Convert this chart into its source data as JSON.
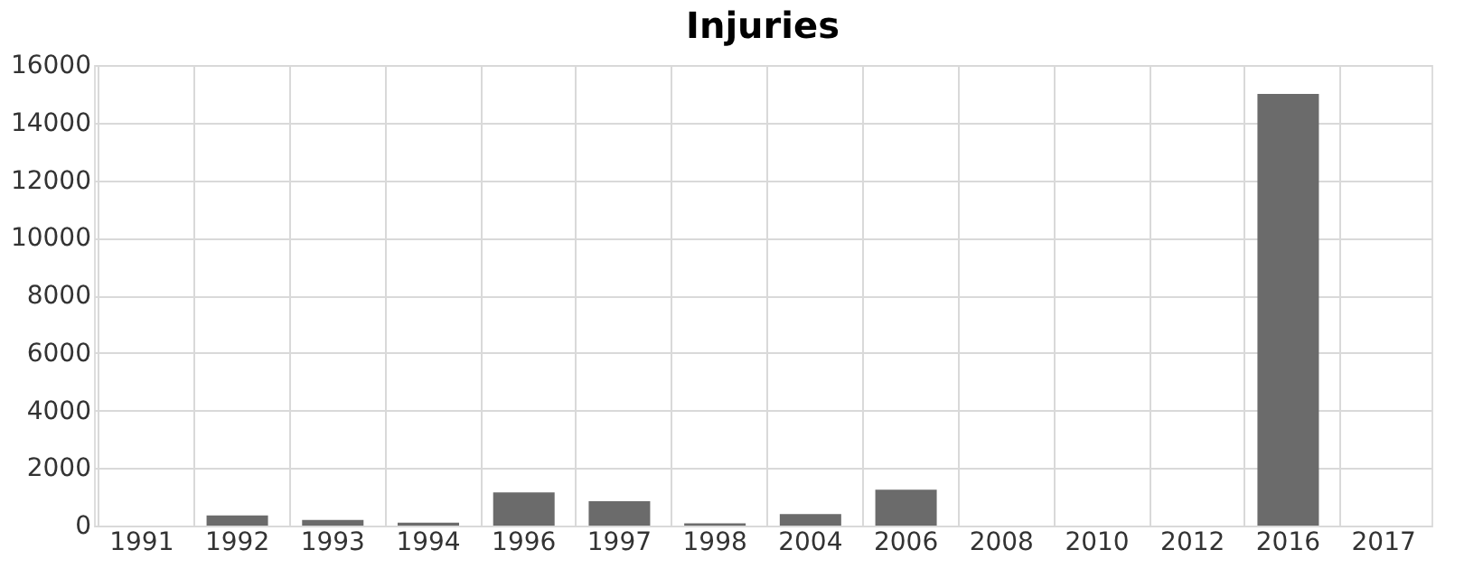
{
  "chart_data": {
    "type": "bar",
    "title": "Injuries",
    "categories": [
      "1991",
      "1992",
      "1993",
      "1994",
      "1996",
      "1997",
      "1998",
      "2004",
      "2006",
      "2008",
      "2010",
      "2012",
      "2016",
      "2017"
    ],
    "values": [
      0,
      350,
      200,
      100,
      1150,
      850,
      80,
      400,
      1250,
      0,
      0,
      0,
      15000,
      0
    ],
    "color": "#6b6b6b",
    "ylim": [
      0,
      16000
    ],
    "yticks": [
      0,
      2000,
      4000,
      6000,
      8000,
      10000,
      12000,
      14000,
      16000
    ],
    "grid": true
  }
}
